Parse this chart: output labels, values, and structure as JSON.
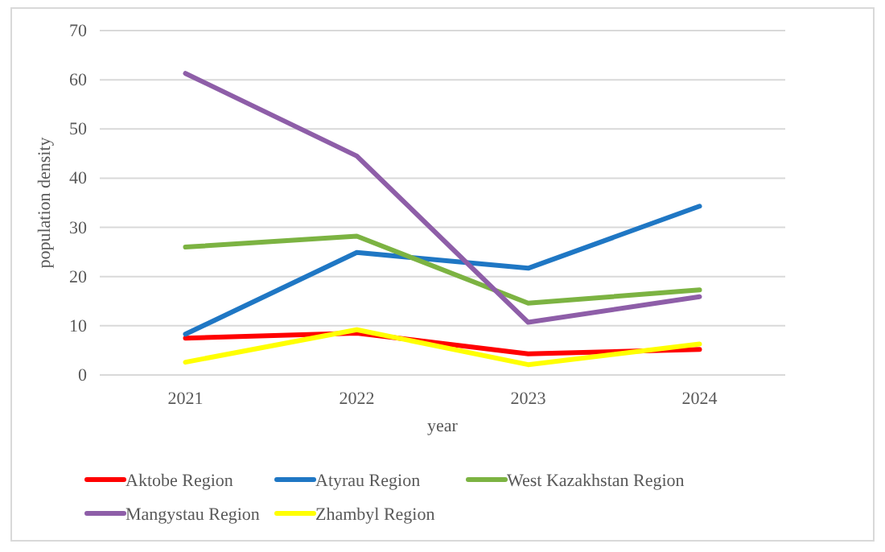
{
  "chart_data": {
    "type": "line",
    "xlabel": "year",
    "ylabel": "population density",
    "categories": [
      "2021",
      "2022",
      "2023",
      "2024"
    ],
    "series": [
      {
        "name": "Aktobe Region",
        "color": "#ff0000",
        "values": [
          7.5,
          8.5,
          4.3,
          5.2
        ]
      },
      {
        "name": "Atyrau Region",
        "color": "#1f77c4",
        "values": [
          8.3,
          24.9,
          21.7,
          34.3
        ]
      },
      {
        "name": "West Kazakhstan Region",
        "color": "#7cb342",
        "values": [
          26,
          28.2,
          14.6,
          17.3
        ]
      },
      {
        "name": "Mangystau Region",
        "color": "#8e5ea8",
        "values": [
          61.3,
          44.5,
          10.7,
          15.9
        ]
      },
      {
        "name": "Zhambyl Region",
        "color": "#ffff00",
        "values": [
          2.6,
          9.2,
          2.1,
          6.3
        ]
      }
    ],
    "ylim": [
      0,
      70
    ],
    "yticks": [
      0,
      10,
      20,
      30,
      40,
      50,
      60,
      70
    ],
    "grid": "y",
    "legend": "bottom",
    "marker": "none",
    "line_style": "solid"
  }
}
